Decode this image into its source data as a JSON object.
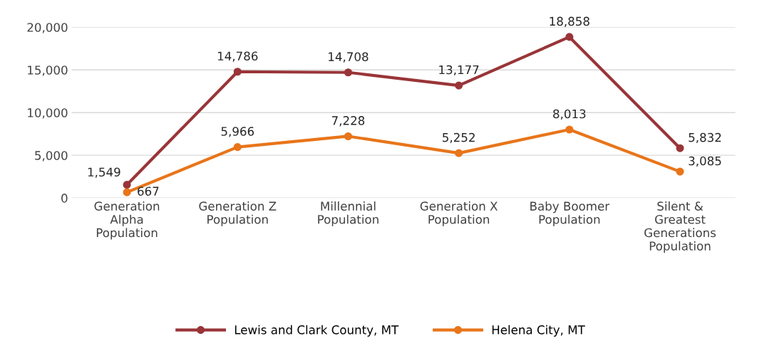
{
  "chart_data": {
    "type": "line",
    "categories": [
      "Generation Alpha Population",
      "Generation Z Population",
      "Millennial Population",
      "Generation X Population",
      "Baby Boomer Population",
      "Silent & Greatest Generations Population"
    ],
    "series": [
      {
        "name": "Lewis and Clark County, MT",
        "color": "#993538",
        "values": [
          1549,
          14786,
          14708,
          13177,
          18858,
          5832
        ],
        "value_labels": [
          "1,549",
          "14,786",
          "14,708",
          "13,177",
          "18,858",
          "5,832"
        ]
      },
      {
        "name": "Helena City, MT",
        "color": "#e8751a",
        "values": [
          667,
          5966,
          7228,
          5252,
          8013,
          3085
        ],
        "value_labels": [
          "667",
          "5,966",
          "7,228",
          "5,252",
          "8,013",
          "3,085"
        ]
      }
    ],
    "ylim": [
      0,
      20000
    ],
    "yticks": [
      {
        "value": 0,
        "label": "0"
      },
      {
        "value": 5000,
        "label": "5,000"
      },
      {
        "value": 10000,
        "label": "10,000"
      },
      {
        "value": 15000,
        "label": "15,000"
      },
      {
        "value": 20000,
        "label": "20,000"
      }
    ],
    "grid": "y",
    "legend": "bottom",
    "marker": "circle",
    "line_style": "solid"
  }
}
